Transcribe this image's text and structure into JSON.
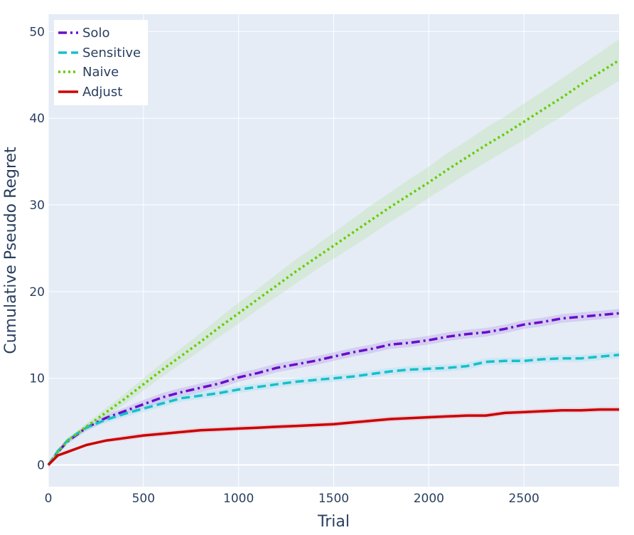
{
  "chart_data": {
    "type": "line",
    "xlabel": "Trial",
    "ylabel": "Cumulative Pseudo Regret",
    "xlim": [
      0,
      3000
    ],
    "ylim": [
      -2.5,
      52
    ],
    "x_ticks": [
      0,
      500,
      1000,
      1500,
      2000,
      2500
    ],
    "y_ticks": [
      0,
      10,
      20,
      30,
      40,
      50
    ],
    "grid": true,
    "legend_position": "top-left",
    "colors": {
      "plot_bg": "#e5ecf6",
      "grid": "#ffffff",
      "text": "#2a3f5f"
    },
    "series": [
      {
        "name": "Solo",
        "color": "#6a0dcc",
        "dash": "dashdot",
        "band_color": "#b59ce8",
        "x": [
          0,
          50,
          100,
          150,
          200,
          300,
          400,
          500,
          600,
          700,
          800,
          900,
          1000,
          1100,
          1200,
          1300,
          1400,
          1500,
          1600,
          1700,
          1800,
          1900,
          2000,
          2100,
          2200,
          2300,
          2400,
          2500,
          2600,
          2700,
          2800,
          2900,
          3000
        ],
        "y": [
          0,
          1.5,
          2.7,
          3.5,
          4.3,
          5.4,
          6.2,
          7.0,
          7.8,
          8.4,
          8.9,
          9.4,
          10.1,
          10.6,
          11.2,
          11.6,
          12.0,
          12.5,
          13.0,
          13.4,
          13.9,
          14.1,
          14.4,
          14.8,
          15.1,
          15.3,
          15.7,
          16.2,
          16.5,
          16.9,
          17.1,
          17.3,
          17.5
        ],
        "band": [
          0.3,
          0.3,
          0.3,
          0.3,
          0.4,
          0.4,
          0.4,
          0.5,
          0.5,
          0.5,
          0.5,
          0.5,
          0.5,
          0.5,
          0.5,
          0.5,
          0.5,
          0.5,
          0.5,
          0.5,
          0.5,
          0.5,
          0.5,
          0.5,
          0.5,
          0.5,
          0.5,
          0.5,
          0.5,
          0.5,
          0.5,
          0.5,
          0.5
        ]
      },
      {
        "name": "Sensitive",
        "color": "#17bfc9",
        "dash": "dash",
        "band_color": "#9fdff0",
        "x": [
          0,
          50,
          100,
          150,
          200,
          300,
          400,
          500,
          600,
          700,
          800,
          900,
          1000,
          1100,
          1200,
          1300,
          1400,
          1500,
          1600,
          1700,
          1800,
          1900,
          2000,
          2100,
          2200,
          2300,
          2400,
          2500,
          2600,
          2700,
          2800,
          2900,
          3000
        ],
        "y": [
          0,
          1.6,
          2.8,
          3.6,
          4.3,
          5.2,
          5.9,
          6.5,
          7.1,
          7.7,
          8.0,
          8.3,
          8.7,
          9.0,
          9.3,
          9.6,
          9.8,
          10.0,
          10.2,
          10.5,
          10.8,
          11.0,
          11.1,
          11.2,
          11.4,
          11.9,
          12.0,
          12.0,
          12.2,
          12.3,
          12.3,
          12.5,
          12.7
        ],
        "band": [
          0.3,
          0.3,
          0.3,
          0.3,
          0.3,
          0.4,
          0.4,
          0.4,
          0.4,
          0.4,
          0.4,
          0.4,
          0.4,
          0.4,
          0.4,
          0.4,
          0.4,
          0.4,
          0.4,
          0.4,
          0.4,
          0.4,
          0.4,
          0.4,
          0.4,
          0.4,
          0.4,
          0.4,
          0.4,
          0.4,
          0.4,
          0.4,
          0.4
        ]
      },
      {
        "name": "Naive",
        "color": "#66cc00",
        "dash": "dot",
        "band_color": "#b7e3a6",
        "x": [
          0,
          50,
          100,
          150,
          200,
          300,
          400,
          500,
          600,
          700,
          800,
          900,
          1000,
          1100,
          1200,
          1300,
          1400,
          1500,
          1600,
          1700,
          1800,
          1900,
          2000,
          2100,
          2200,
          2300,
          2400,
          2500,
          2600,
          2700,
          2800,
          2900,
          3000
        ],
        "y": [
          0,
          1.5,
          2.8,
          3.6,
          4.4,
          6.0,
          7.6,
          9.3,
          11.0,
          12.6,
          14.2,
          15.9,
          17.5,
          19.1,
          20.7,
          22.3,
          23.8,
          25.3,
          26.8,
          28.3,
          29.8,
          31.2,
          32.6,
          34.1,
          35.5,
          36.9,
          38.2,
          39.6,
          41.0,
          42.4,
          43.9,
          45.3,
          46.7
        ],
        "band": [
          0.1,
          0.2,
          0.3,
          0.3,
          0.4,
          0.5,
          0.6,
          0.7,
          0.8,
          0.9,
          1.0,
          1.1,
          1.2,
          1.2,
          1.3,
          1.4,
          1.4,
          1.5,
          1.6,
          1.7,
          1.7,
          1.8,
          1.8,
          1.9,
          1.9,
          2.0,
          2.0,
          2.1,
          2.1,
          2.2,
          2.2,
          2.3,
          2.4
        ]
      },
      {
        "name": "Adjust",
        "color": "#cc0000",
        "dash": "solid",
        "band_color": "#e2a8b4",
        "x": [
          0,
          50,
          100,
          150,
          200,
          300,
          400,
          500,
          600,
          700,
          800,
          900,
          1000,
          1100,
          1200,
          1300,
          1400,
          1500,
          1600,
          1700,
          1800,
          1900,
          2000,
          2100,
          2200,
          2300,
          2400,
          2500,
          2600,
          2700,
          2800,
          2900,
          3000
        ],
        "y": [
          0,
          1.1,
          1.5,
          1.9,
          2.3,
          2.8,
          3.1,
          3.4,
          3.6,
          3.8,
          4.0,
          4.1,
          4.2,
          4.3,
          4.4,
          4.5,
          4.6,
          4.7,
          4.9,
          5.1,
          5.3,
          5.4,
          5.5,
          5.6,
          5.7,
          5.7,
          6.0,
          6.1,
          6.2,
          6.3,
          6.3,
          6.4,
          6.4
        ],
        "band": [
          0.2,
          0.2,
          0.2,
          0.2,
          0.2,
          0.2,
          0.3,
          0.3,
          0.3,
          0.3,
          0.3,
          0.3,
          0.3,
          0.3,
          0.3,
          0.3,
          0.3,
          0.3,
          0.3,
          0.3,
          0.3,
          0.3,
          0.3,
          0.3,
          0.3,
          0.3,
          0.3,
          0.3,
          0.3,
          0.3,
          0.3,
          0.3,
          0.3
        ]
      }
    ]
  }
}
